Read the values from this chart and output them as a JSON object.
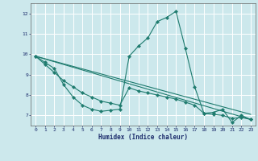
{
  "title": "",
  "xlabel": "Humidex (Indice chaleur)",
  "ylabel": "",
  "bg_color": "#cce8ec",
  "line_color": "#1e7b6e",
  "grid_color": "#ffffff",
  "xlim": [
    -0.5,
    23.5
  ],
  "ylim": [
    6.5,
    12.5
  ],
  "xticks": [
    0,
    1,
    2,
    3,
    4,
    5,
    6,
    7,
    8,
    9,
    10,
    11,
    12,
    13,
    14,
    15,
    16,
    17,
    18,
    19,
    20,
    21,
    22,
    23
  ],
  "yticks": [
    7,
    8,
    9,
    10,
    11,
    12
  ],
  "line1_x": [
    0,
    1,
    2,
    3,
    4,
    5,
    6,
    7,
    8,
    9,
    10,
    11,
    12,
    13,
    14,
    15,
    16,
    17,
    18,
    19,
    20,
    21,
    22,
    23
  ],
  "line1_y": [
    9.9,
    9.6,
    9.3,
    8.5,
    7.9,
    7.5,
    7.3,
    7.2,
    7.25,
    7.3,
    9.9,
    10.4,
    10.8,
    11.6,
    11.8,
    12.1,
    10.3,
    8.4,
    7.1,
    7.15,
    7.3,
    6.65,
    7.0,
    6.8
  ],
  "line2_x": [
    0,
    1,
    2,
    3,
    4,
    5,
    6,
    7,
    8,
    9,
    10,
    11,
    12,
    13,
    14,
    15,
    16,
    17,
    18,
    19,
    20,
    21,
    22,
    23
  ],
  "line2_y": [
    9.9,
    9.5,
    9.1,
    8.7,
    8.4,
    8.1,
    7.9,
    7.7,
    7.6,
    7.5,
    8.35,
    8.2,
    8.1,
    8.0,
    7.9,
    7.8,
    7.65,
    7.5,
    7.1,
    7.05,
    7.0,
    6.85,
    6.9,
    6.8
  ],
  "line3_x": [
    0,
    23
  ],
  "line3_y": [
    9.9,
    6.8
  ],
  "line4_x": [
    0,
    23
  ],
  "line4_y": [
    9.9,
    7.05
  ],
  "figsize": [
    3.2,
    2.0
  ],
  "dpi": 100
}
